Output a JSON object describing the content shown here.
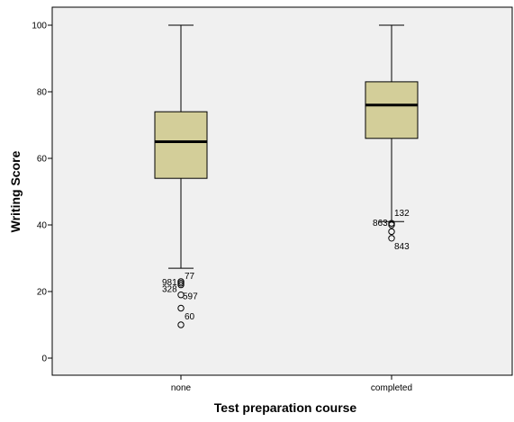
{
  "chart_data": {
    "type": "box",
    "xlabel": "Test preparation course",
    "ylabel": "Writing Score",
    "ylim": [
      -2,
      105
    ],
    "yticks": [
      0,
      20,
      40,
      60,
      80,
      100
    ],
    "grid": false,
    "background_color": "#f0f0f0",
    "box_color": "#d3ce99",
    "categories": [
      "none",
      "completed"
    ],
    "boxes": [
      {
        "category": "none",
        "whisker_low": 27,
        "q1": 54,
        "median": 65,
        "q3": 74,
        "whisker_high": 100,
        "outliers": [
          {
            "label": "981",
            "value": 23
          },
          {
            "label": "77",
            "value": 22.5
          },
          {
            "label": "328",
            "value": 22
          },
          {
            "label": "597",
            "value": 19
          },
          {
            "label": "",
            "value": 15
          },
          {
            "label": "60",
            "value": 10
          }
        ]
      },
      {
        "category": "completed",
        "whisker_low": 41,
        "q1": 66,
        "median": 76,
        "q3": 83,
        "whisker_high": 100,
        "outliers": [
          {
            "label": "132",
            "value": 40.5
          },
          {
            "label": "863",
            "value": 40
          },
          {
            "label": "",
            "value": 38
          },
          {
            "label": "843",
            "value": 36
          }
        ]
      }
    ]
  }
}
